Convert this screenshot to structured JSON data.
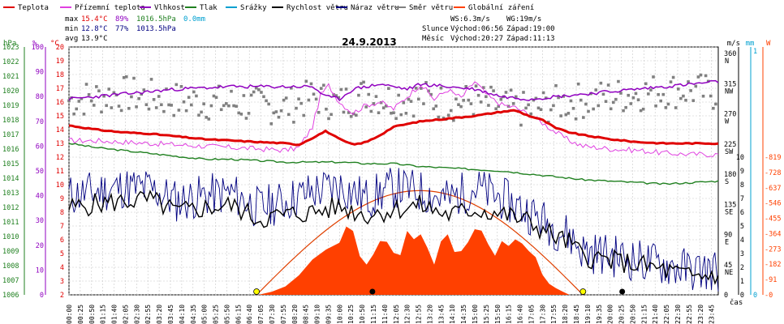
{
  "chart_data": {
    "type": "line",
    "title": "24.9.2013",
    "xlabel": "čas",
    "legend": [
      {
        "label": "Teplota",
        "color": "#e00000"
      },
      {
        "label": "Přízemní teplota",
        "color": "#e040e0"
      },
      {
        "label": "Vlhkost",
        "color": "#9000c0"
      },
      {
        "label": "Tlak",
        "color": "#208020"
      },
      {
        "label": "Srážky",
        "color": "#00a0d0"
      },
      {
        "label": "Rychlost větru",
        "color": "#000000"
      },
      {
        "label": "Náraz větru",
        "color": "#000080"
      },
      {
        "label": "Směr větru",
        "color": "#808080"
      },
      {
        "label": "Globální záření",
        "color": "#ff4000"
      }
    ],
    "stats": {
      "max_label": "max",
      "max_t": "15.4°C",
      "max_h": "89%",
      "max_p": "1016.5hPa",
      "max_r": "0.0mm",
      "min_label": "min",
      "min_t": "12.8°C",
      "min_h": "77%",
      "min_p": "1013.5hPa",
      "avg_label": "avg",
      "avg_t": "13.9°C"
    },
    "info": {
      "ws": "WS:6.3m/s",
      "wg": "WG:19m/s",
      "sun_label": "Slunce",
      "sun_rise": "Východ:06:56",
      "sun_set": "Západ:19:00",
      "moon_label": "Měsíc",
      "moon_rise": "Východ:20:27",
      "moon_set": "Západ:11:13"
    },
    "axes": {
      "hpa_label": "hPa",
      "pct_label": "%",
      "c_label": "°C",
      "ms_label": "m/s",
      "mm_label": "mm",
      "w_label": "W",
      "hpa_ticks": [
        "1023",
        "1022",
        "1021",
        "1020",
        "1019",
        "1018",
        "1017",
        "1016",
        "1015",
        "1014",
        "1013",
        "1012",
        "1011",
        "1010",
        "1009",
        "1008",
        "1007",
        "1006"
      ],
      "pct_ticks": [
        "100",
        "90",
        "80",
        "70",
        "60",
        "50",
        "40",
        "30",
        "20",
        "10",
        "0"
      ],
      "c_ticks": [
        "20",
        "19",
        "18",
        "17",
        "16",
        "15",
        "14",
        "13",
        "12",
        "11",
        "10",
        "9",
        "8",
        "7",
        "6",
        "5",
        "4",
        "3",
        "2"
      ],
      "dir_ticks": [
        "360",
        "315",
        "270",
        "225",
        "180",
        "135",
        "90",
        "45",
        "0"
      ],
      "dir_letters": [
        "N",
        "NW",
        "W",
        "SW",
        "S",
        "SE",
        "E",
        "NE",
        ""
      ],
      "ms_ticks": [
        "10",
        "9",
        "8",
        "7",
        "6",
        "5",
        "4",
        "3",
        "2",
        "1",
        "0"
      ],
      "mm_ticks": [
        "1",
        "0"
      ],
      "w_ticks": [
        "819",
        "728",
        "637",
        "546",
        "455",
        "364",
        "273",
        "182",
        "91",
        "0"
      ],
      "time_ticks": [
        "00:00",
        "00:25",
        "00:50",
        "01:15",
        "01:40",
        "02:05",
        "02:30",
        "02:55",
        "03:20",
        "03:45",
        "04:10",
        "04:35",
        "05:00",
        "05:25",
        "05:50",
        "06:15",
        "06:40",
        "07:05",
        "07:30",
        "07:55",
        "08:20",
        "08:45",
        "09:10",
        "09:35",
        "10:00",
        "10:25",
        "10:50",
        "11:15",
        "11:40",
        "12:05",
        "12:30",
        "12:55",
        "13:20",
        "13:45",
        "14:10",
        "14:35",
        "15:00",
        "15:25",
        "15:50",
        "16:15",
        "16:40",
        "17:05",
        "17:30",
        "17:55",
        "18:20",
        "18:45",
        "19:10",
        "19:35",
        "20:00",
        "20:25",
        "20:50",
        "21:15",
        "21:40",
        "22:05",
        "22:30",
        "22:55",
        "23:20",
        "23:45"
      ]
    },
    "series": [
      {
        "name": "Teplota",
        "unit": "°C",
        "hours": [
          0,
          1,
          2,
          3,
          4,
          5,
          6,
          7,
          8,
          8.5,
          9,
          9.5,
          10,
          10.5,
          11,
          11.5,
          12,
          13,
          14,
          15,
          16,
          16.5,
          17,
          17.5,
          18,
          18.5,
          19,
          20,
          21,
          22,
          23,
          24
        ],
        "values": [
          14.3,
          14.0,
          13.8,
          13.7,
          13.5,
          13.3,
          13.2,
          13.1,
          13.0,
          12.9,
          13.4,
          13.9,
          13.3,
          12.9,
          13.1,
          13.6,
          14.2,
          14.6,
          14.8,
          15.0,
          15.3,
          15.4,
          15.0,
          14.7,
          14.1,
          13.8,
          13.6,
          13.3,
          13.1,
          13.0,
          13.0,
          13.0
        ]
      },
      {
        "name": "Přízemní teplota",
        "unit": "°C",
        "hours": [
          0,
          1,
          2,
          3,
          4,
          5,
          6,
          7,
          8,
          8.5,
          9,
          9.3,
          9.6,
          10,
          10.5,
          11,
          11.5,
          12,
          12.5,
          13,
          13.5,
          14,
          14.5,
          15,
          15.5,
          16,
          16.5,
          17,
          17.5,
          18,
          18.5,
          19,
          20,
          21,
          22,
          23,
          24
        ],
        "values": [
          13.2,
          13.2,
          13.1,
          13.0,
          12.9,
          12.8,
          12.7,
          12.6,
          12.5,
          12.7,
          14.2,
          16.5,
          17.2,
          16.0,
          15.2,
          15.8,
          16.0,
          15.5,
          16.4,
          17.3,
          16.2,
          16.9,
          16.3,
          17.5,
          16.4,
          15.8,
          15.6,
          15.1,
          14.5,
          13.8,
          13.2,
          12.8,
          12.6,
          12.5,
          12.3,
          12.2,
          12.2
        ]
      },
      {
        "name": "Vlhkost",
        "unit": "%",
        "hours": [
          0,
          2,
          4,
          6,
          8,
          9,
          9.5,
          10,
          10.5,
          11,
          11.5,
          12,
          12.5,
          13,
          14,
          15,
          16,
          17,
          18,
          19,
          20,
          21,
          22,
          23,
          24
        ],
        "values": [
          79,
          81,
          83,
          84,
          84,
          84,
          80,
          79,
          83,
          84,
          85,
          84,
          83,
          85,
          84,
          83,
          80,
          79,
          80,
          81,
          82,
          83,
          84,
          85,
          86
        ]
      },
      {
        "name": "Tlak",
        "unit": "hPa",
        "hours": [
          0,
          1,
          2,
          3,
          4,
          5,
          6,
          7,
          8,
          9,
          10,
          11,
          12,
          13,
          14,
          15,
          16,
          17,
          18,
          19,
          20,
          21,
          22,
          23,
          24
        ],
        "values": [
          1016.4,
          1016.1,
          1015.9,
          1015.7,
          1015.5,
          1015.3,
          1015.3,
          1015.2,
          1015.1,
          1015.1,
          1015.1,
          1015.0,
          1015.0,
          1014.8,
          1014.7,
          1014.6,
          1014.5,
          1014.3,
          1014.1,
          1013.9,
          1013.8,
          1013.7,
          1013.6,
          1013.7,
          1013.8
        ]
      },
      {
        "name": "Rychlost větru",
        "unit": "m/s",
        "hours": [
          0,
          1,
          2,
          3,
          4,
          5,
          6,
          7,
          8,
          9,
          10,
          11,
          12,
          13,
          14,
          15,
          16,
          17,
          18,
          18.5,
          19,
          20,
          21,
          22,
          23,
          24
        ],
        "values": [
          6.3,
          6.6,
          6.8,
          6.9,
          6.0,
          6.3,
          6.5,
          5.5,
          5.8,
          6.0,
          6.4,
          5.8,
          6.2,
          6.5,
          5.8,
          6.2,
          5.9,
          5.3,
          4.2,
          3.8,
          2.8,
          2.5,
          2.2,
          1.8,
          1.3,
          1.5
        ]
      },
      {
        "name": "Náraz větru",
        "unit": "m/s",
        "hours": [
          0,
          1,
          2,
          3,
          4,
          5,
          6,
          7,
          8,
          9,
          10,
          11,
          12,
          13,
          14,
          15,
          16,
          17,
          18,
          18.5,
          19,
          20,
          21,
          22,
          23,
          24
        ],
        "values": [
          7.2,
          7.5,
          7.8,
          7.7,
          6.8,
          7.2,
          7.4,
          6.3,
          6.8,
          7.5,
          7.9,
          7.0,
          7.8,
          7.5,
          6.9,
          7.8,
          7.0,
          6.0,
          4.8,
          4.3,
          3.2,
          2.9,
          2.5,
          2.2,
          1.8,
          1.8
        ]
      },
      {
        "name": "Směr větru",
        "unit": "°",
        "hours": [
          0,
          2,
          4,
          6,
          8,
          9,
          10,
          11,
          12,
          13,
          14,
          15,
          16,
          17,
          18,
          19,
          20,
          21,
          22,
          23,
          24
        ],
        "values": [
          290,
          300,
          290,
          285,
          280,
          295,
          285,
          300,
          290,
          295,
          285,
          290,
          280,
          275,
          285,
          290,
          295,
          300,
          305,
          305,
          300
        ]
      },
      {
        "name": "Globální záření",
        "unit": "W",
        "hours": [
          7,
          8,
          9,
          10,
          10.5,
          11,
          11.5,
          12,
          12.5,
          13,
          13.5,
          14,
          14.5,
          15,
          15.5,
          16,
          16.5,
          17,
          17.5,
          18,
          18.5
        ],
        "values": [
          0,
          50,
          210,
          310,
          380,
          180,
          320,
          250,
          380,
          360,
          180,
          360,
          260,
          390,
          300,
          320,
          330,
          260,
          120,
          40,
          0
        ]
      }
    ],
    "clear_sky_curve": {
      "unit": "W",
      "rise": "06:56",
      "set": "19:00",
      "peak": 620
    }
  }
}
